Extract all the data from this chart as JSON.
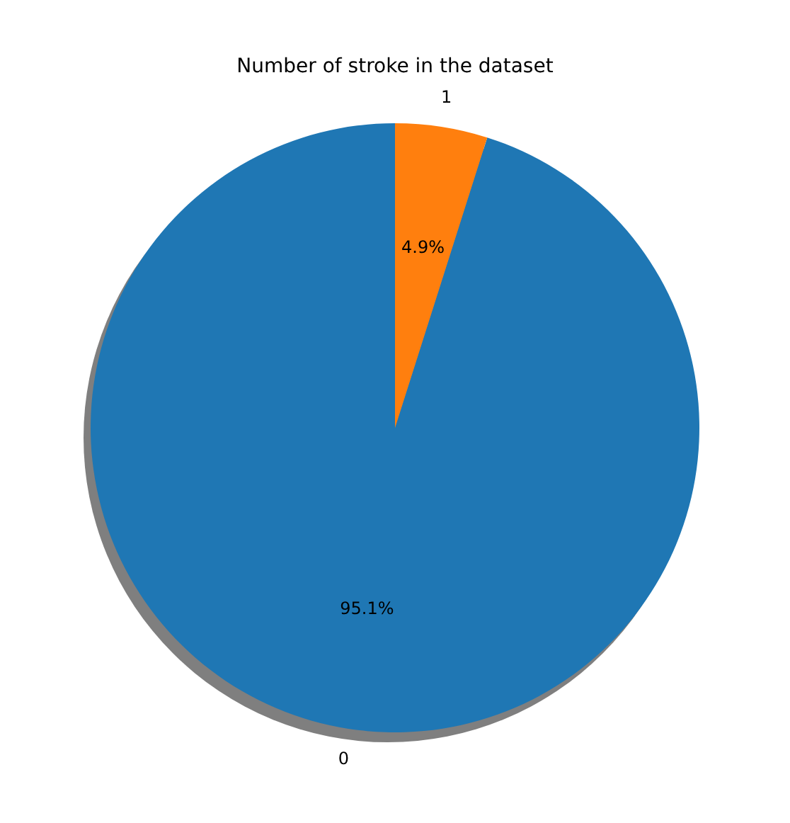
{
  "chart_data": {
    "type": "pie",
    "title": "Number of stroke in the dataset",
    "categories": [
      "0",
      "1"
    ],
    "values": [
      95.1,
      4.9
    ],
    "colors": [
      "#1f77b4",
      "#ff7f0e"
    ],
    "value_labels": [
      "95.1%",
      "4.9%"
    ]
  }
}
